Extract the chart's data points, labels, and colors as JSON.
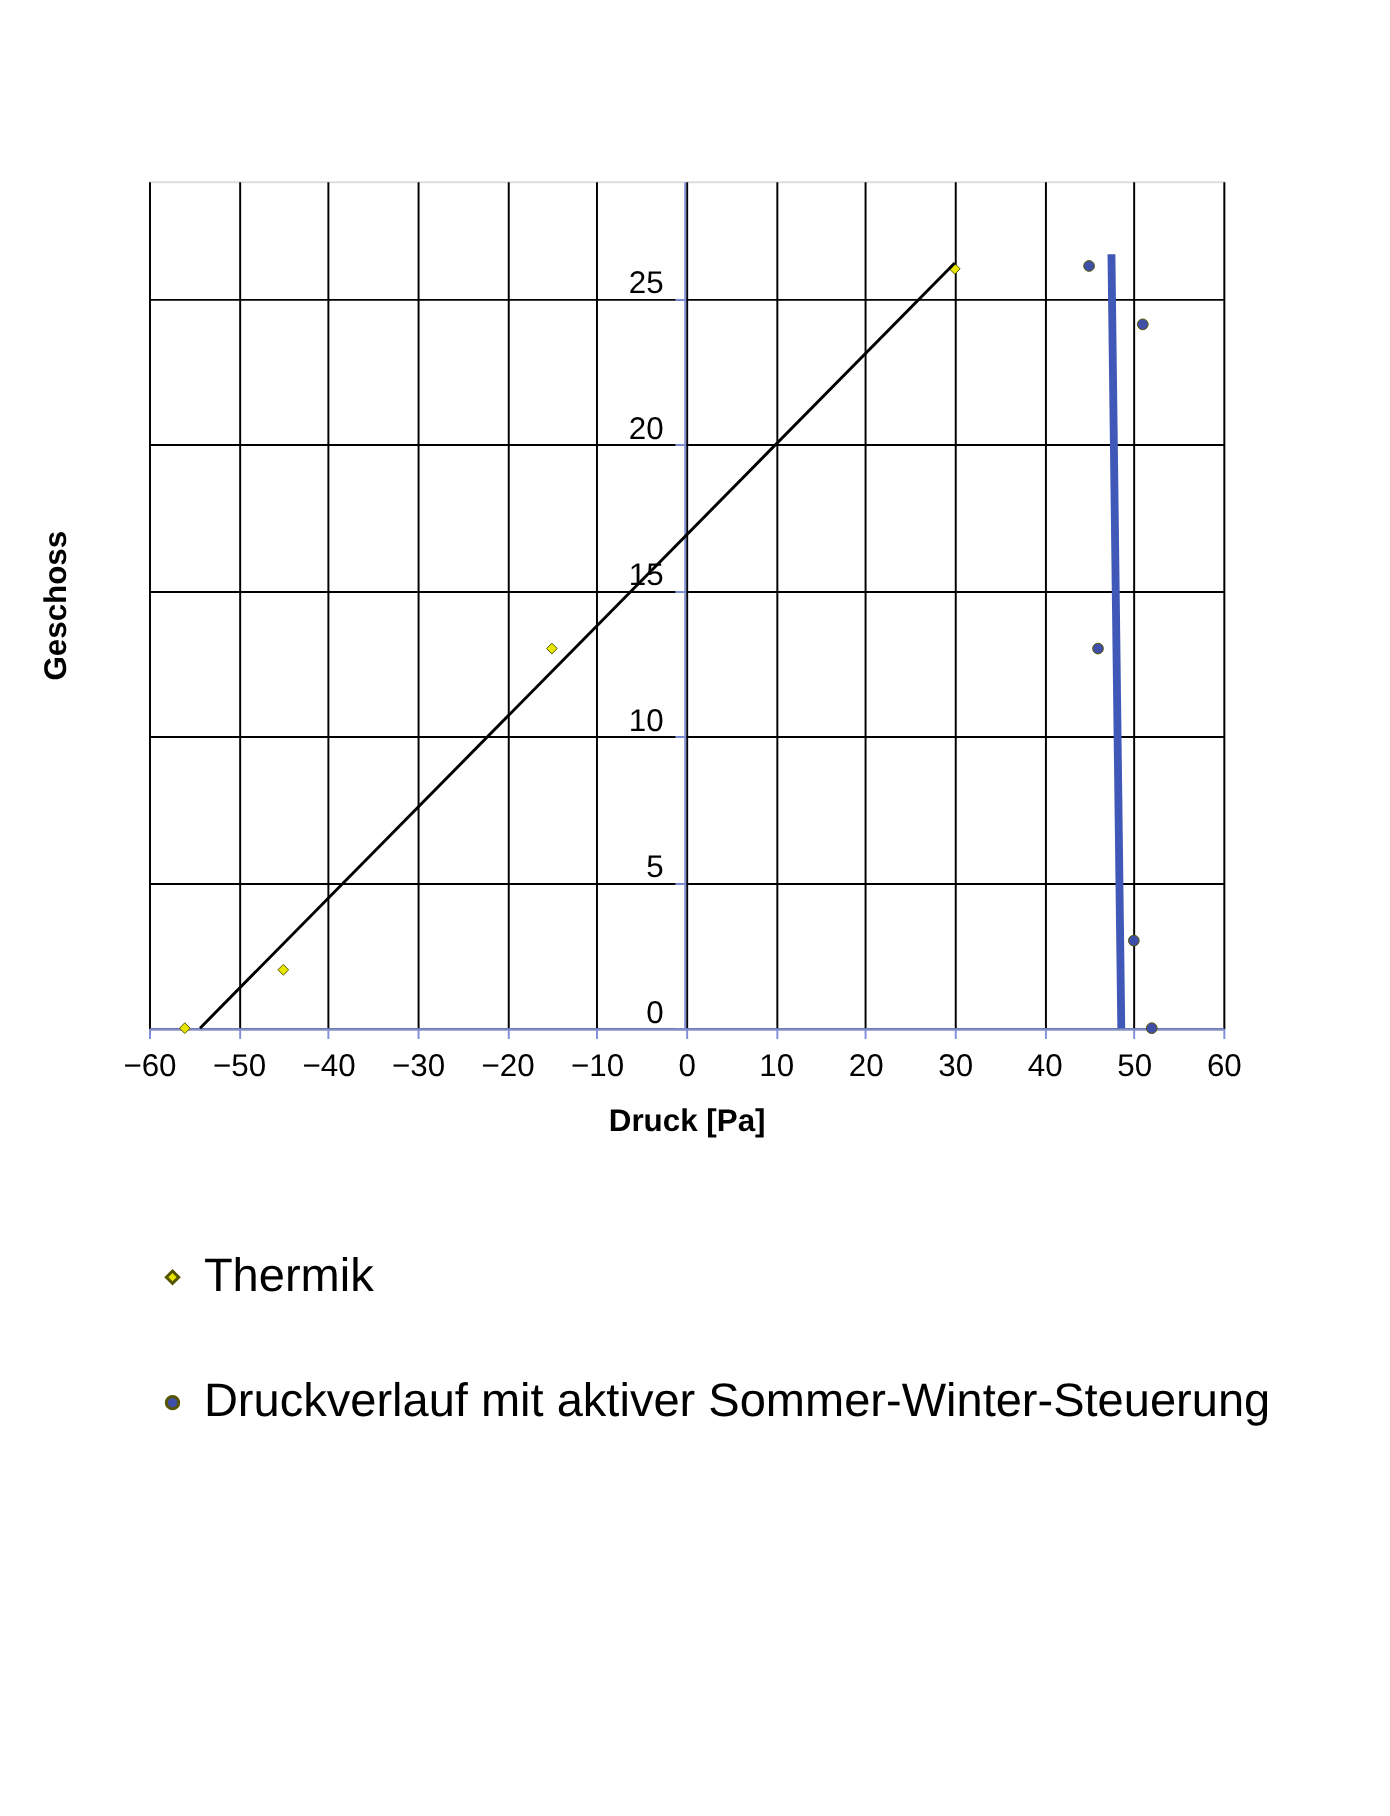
{
  "chart_data": {
    "type": "scatter",
    "xlabel": "Druck [Pa]",
    "ylabel": "Geschoss",
    "xlim": [
      -60,
      60
    ],
    "xticks": [
      -60,
      -50,
      -40,
      -30,
      -20,
      -10,
      0,
      10,
      20,
      30,
      40,
      50,
      60
    ],
    "ylim": [
      0,
      29
    ],
    "yticks": [
      0,
      5,
      10,
      15,
      20,
      25
    ],
    "grid": true,
    "legend": "bottom",
    "series": [
      {
        "name": "Thermik",
        "marker": "diamond",
        "color": "#e6e600",
        "x": [
          -56,
          -45,
          -15,
          30
        ],
        "values": [
          0,
          2,
          13,
          26
        ]
      },
      {
        "name": "Druckverlauf mit aktiver Sommer-Winter-Steuerung",
        "marker": "circle",
        "color": "#3f4fa8",
        "x": [
          45,
          51,
          46,
          50,
          52
        ],
        "values": [
          26.1,
          24.1,
          13,
          3,
          0
        ]
      },
      {
        "type": "line",
        "line_style": "solid",
        "color": "#000000",
        "x": [
          -54.3,
          30
        ],
        "values": [
          0,
          26.2
        ]
      },
      {
        "type": "line",
        "line_style": "solid",
        "color": "#4058b8",
        "x": [
          47.5,
          48.6
        ],
        "values": [
          26.5,
          0
        ]
      }
    ]
  }
}
